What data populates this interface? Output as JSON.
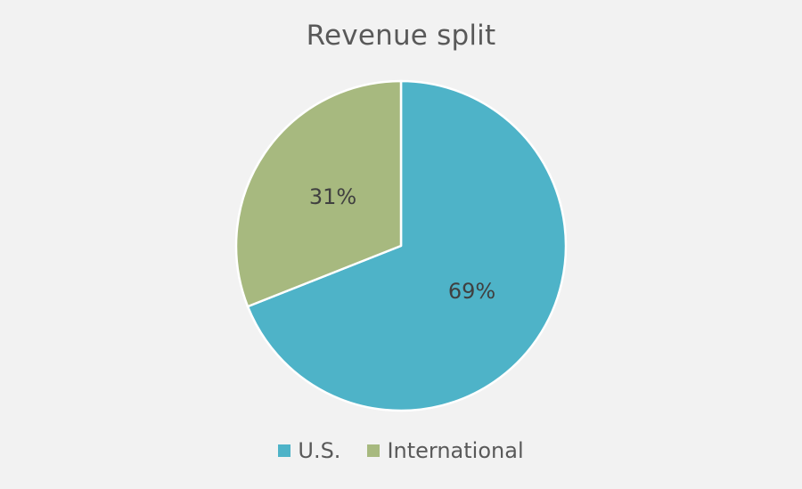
{
  "chart_data": {
    "type": "pie",
    "title": "Revenue split",
    "series": [
      {
        "name": "",
        "categories": [
          "U.S.",
          "International"
        ],
        "values": [
          69,
          31
        ],
        "labels": [
          "69%",
          "31%"
        ],
        "colors": [
          "#4eb3c8",
          "#a7b97f"
        ]
      }
    ],
    "start_angle": "12 o'clock",
    "direction": "clockwise",
    "legend": "bottom",
    "slice_border_color": "#ffffff"
  }
}
